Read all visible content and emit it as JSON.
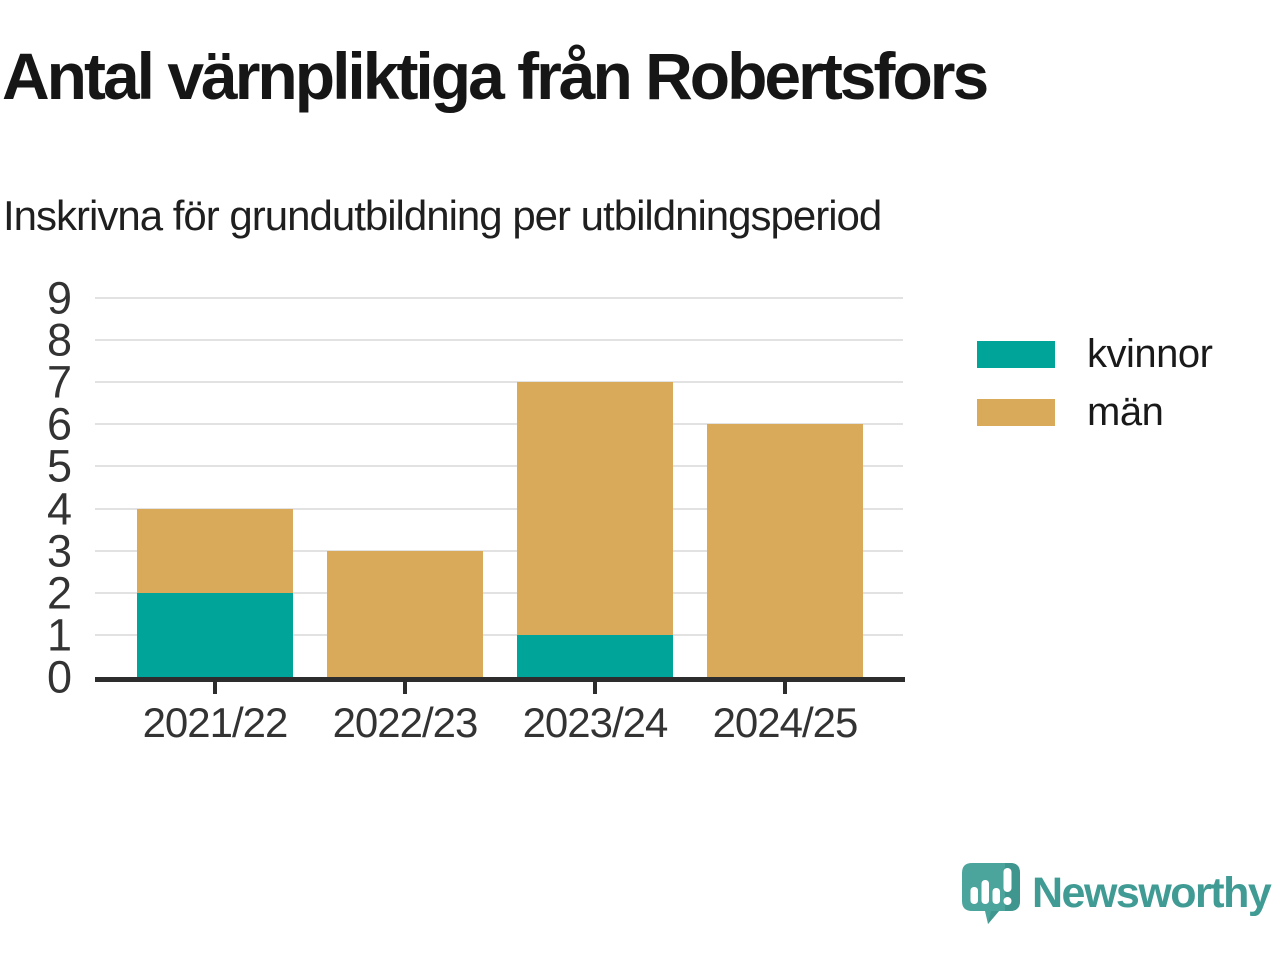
{
  "chart_data": {
    "type": "bar",
    "stacked": true,
    "title": "Antal värnpliktiga från Robertsfors",
    "subtitle": "Inskrivna för grundutbildning per utbildningsperiod",
    "categories": [
      "2021/22",
      "2022/23",
      "2023/24",
      "2024/25"
    ],
    "series": [
      {
        "name": "kvinnor",
        "color": "#00a499",
        "values": [
          2,
          0,
          1,
          0
        ]
      },
      {
        "name": "män",
        "color": "#d8aa5a",
        "values": [
          2,
          3,
          6,
          6
        ]
      }
    ],
    "xlabel": "",
    "ylabel": "",
    "ylim": [
      0,
      9
    ],
    "yticks": [
      0,
      1,
      2,
      3,
      4,
      5,
      6,
      7,
      8,
      9
    ],
    "grid": true,
    "grid_color": "#e2e2e2",
    "axis_color": "#2d2d2d",
    "tick_label_color": "#333333",
    "legend_position": "right-of-plot"
  },
  "branding": {
    "name": "Newsworthy",
    "color": "#3f9b94",
    "logo_icon": "newsworthy-speech-bubble-bar-chart-icon",
    "logo_bubble_color": "#4ba59d",
    "logo_bubble_shade_color": "#3f968e"
  }
}
